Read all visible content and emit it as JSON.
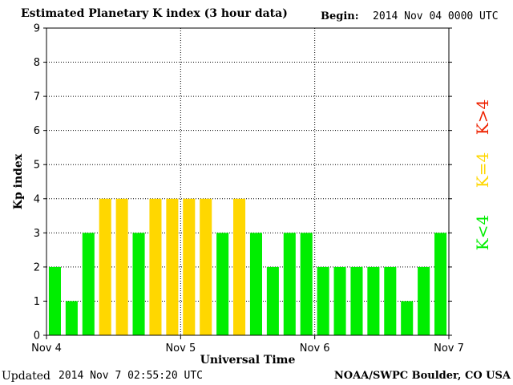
{
  "header": {
    "title": "Estimated Planetary K index (3 hour data)",
    "begin_label": "Begin:",
    "begin_value": "2014 Nov 04 0000 UTC"
  },
  "footer": {
    "updated_label": "Updated",
    "updated_value": "2014 Nov  7 02:55:20 UTC",
    "credit": "NOAA/SWPC Boulder, CO USA"
  },
  "colors": {
    "below": "#00ee00",
    "equal": "#ffd700",
    "above": "#ee2200",
    "grid": "#000000"
  },
  "legend": {
    "below": "K<4",
    "equal": "K=4",
    "above": "K>4"
  },
  "chart_data": {
    "type": "bar",
    "title": "Estimated Planetary K index (3 hour data)",
    "xlabel": "Universal Time",
    "ylabel": "Kp index",
    "ylim": [
      0,
      9
    ],
    "yticks": [
      "0",
      "1",
      "2",
      "3",
      "4",
      "5",
      "6",
      "7",
      "8",
      "9"
    ],
    "xtick_labels": [
      "Nov 4",
      "Nov 5",
      "Nov 6",
      "Nov 7"
    ],
    "grid": true,
    "threshold": 4,
    "values": [
      2,
      1,
      3,
      4,
      4,
      3,
      4,
      4,
      4,
      4,
      3,
      4,
      3,
      2,
      3,
      3,
      2,
      2,
      2,
      2,
      2,
      1,
      2,
      3
    ]
  }
}
